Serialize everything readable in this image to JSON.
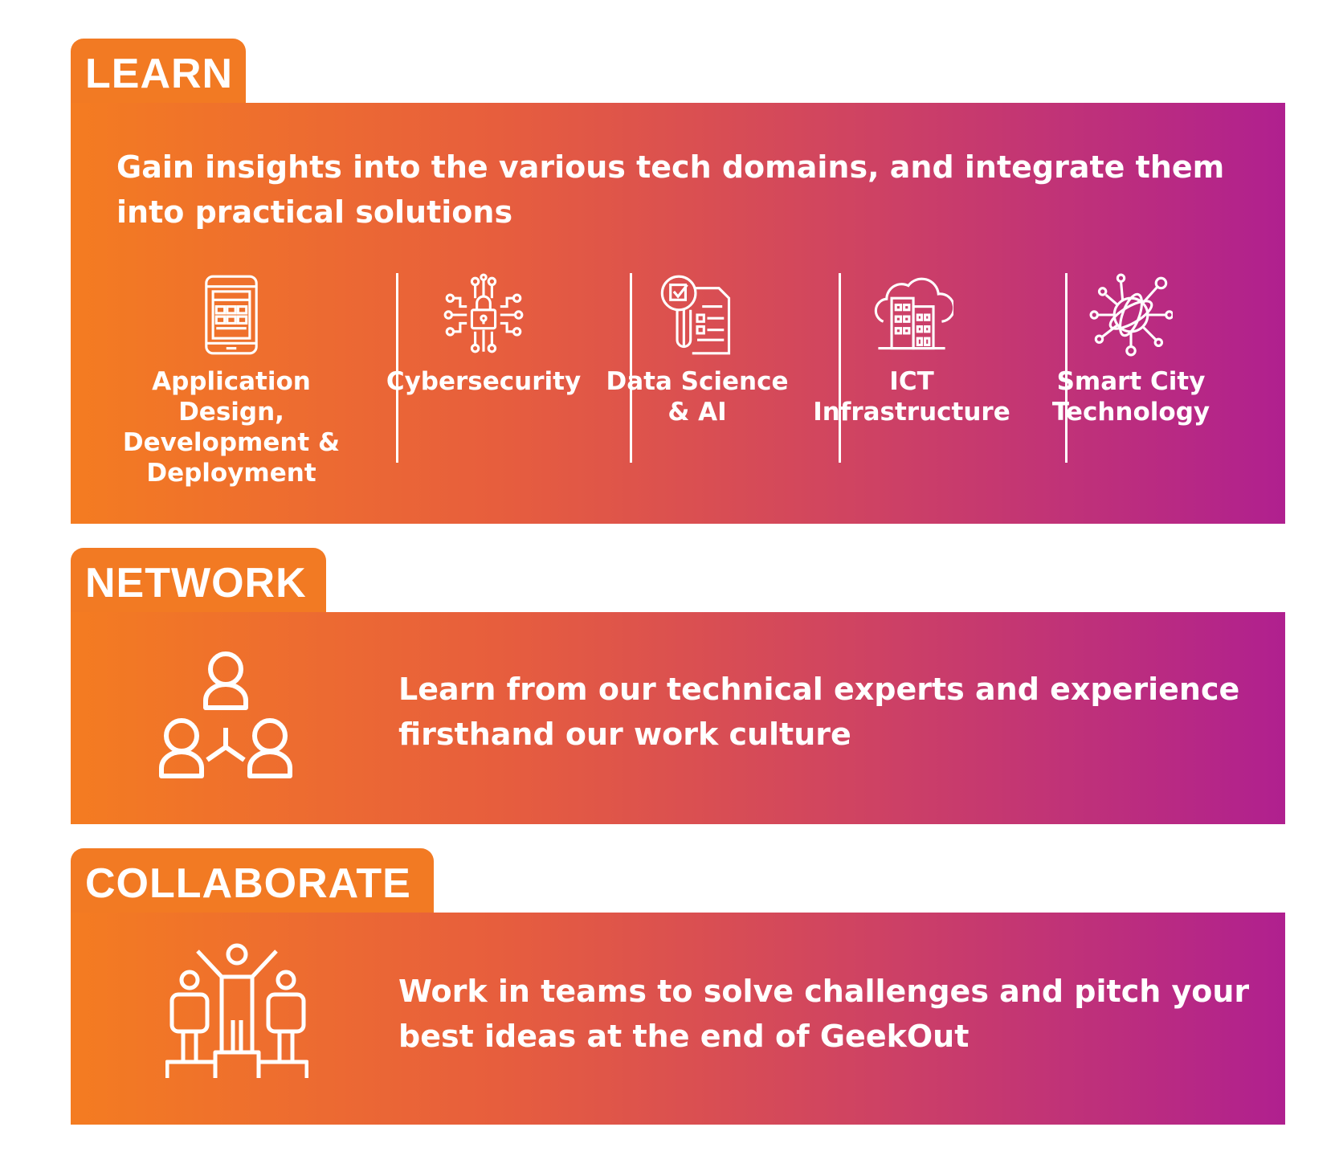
{
  "sections": {
    "learn": {
      "title": "LEARN",
      "description": "Gain insights into the various tech domains, and integrate them into practical solutions",
      "domains": [
        {
          "label": "Application Design,\nDevelopment &\nDeployment",
          "icon": "tablet-app-icon"
        },
        {
          "label": "Cybersecurity",
          "icon": "circuit-lock-icon"
        },
        {
          "label": "Data Science\n& AI",
          "icon": "data-report-icon"
        },
        {
          "label": "ICT\nInfrastructure",
          "icon": "cloud-building-icon"
        },
        {
          "label": "Smart City\nTechnology",
          "icon": "globe-network-icon"
        }
      ]
    },
    "network": {
      "title": "NETWORK",
      "description": "Learn from our technical experts and experience firsthand our work culture",
      "icon": "people-network-icon"
    },
    "collaborate": {
      "title": "COLLABORATE",
      "description": "Work in teams to solve challenges and pitch your best ideas at the end of GeekOut",
      "icon": "team-podium-icon"
    }
  },
  "colors": {
    "tab_orange": "#f27a23",
    "gradient_start": "#f47c21",
    "gradient_end": "#b0208f",
    "text": "#ffffff"
  }
}
